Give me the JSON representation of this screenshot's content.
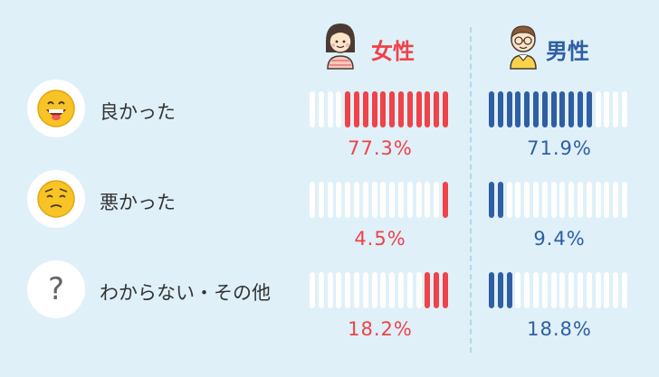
{
  "headers": {
    "female": "女性",
    "male": "男性"
  },
  "colors": {
    "female": "#ef4249",
    "male": "#2f5ea3",
    "empty_bar": "#ffffff",
    "background": "#dff0f8"
  },
  "chart_data": {
    "type": "bar",
    "categories": [
      "良かった",
      "悪かった",
      "わからない・その他"
    ],
    "series": [
      {
        "name": "女性",
        "values": [
          77.3,
          4.5,
          18.2
        ],
        "labels": [
          "77.3%",
          "4.5%",
          "18.2%"
        ]
      },
      {
        "name": "男性",
        "values": [
          71.9,
          9.4,
          18.8
        ],
        "labels": [
          "71.9%",
          "9.4%",
          "18.8%"
        ]
      }
    ],
    "unit": "%",
    "ylim": [
      0,
      100
    ],
    "segments_per_bar": 16,
    "female_fill_from": "right",
    "male_fill_from": "left"
  },
  "rows": [
    {
      "label": "良かった",
      "icon": "happy-face-icon"
    },
    {
      "label": "悪かった",
      "icon": "worried-face-icon"
    },
    {
      "label": "わからない・その他",
      "icon": "question-mark-icon",
      "symbol": "?"
    }
  ]
}
